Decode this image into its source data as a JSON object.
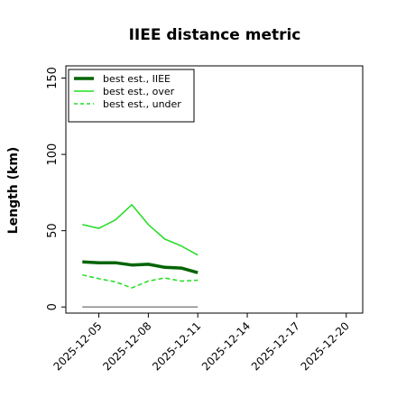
{
  "chart_data": {
    "type": "line",
    "title": "IIEE distance metric",
    "xlabel": "",
    "ylabel": "Length (km)",
    "xlim": [
      "2025-12-03",
      "2025-12-21"
    ],
    "ylim": [
      -4,
      158
    ],
    "x_ticks": [
      "2025-12-05",
      "2025-12-08",
      "2025-12-11",
      "2025-12-14",
      "2025-12-17",
      "2025-12-20"
    ],
    "y_ticks": [
      0,
      50,
      100,
      150
    ],
    "grid": false,
    "legend_position": "upper-left",
    "x": [
      "2025-12-04",
      "2025-12-05",
      "2025-12-06",
      "2025-12-07",
      "2025-12-08",
      "2025-12-09",
      "2025-12-10",
      "2025-12-11"
    ],
    "series": [
      {
        "name": "best est., IIEE",
        "color": "#006400",
        "style": "solid",
        "width": "thick",
        "values": [
          29.5,
          29,
          29,
          27.5,
          28,
          26,
          25.5,
          22.5
        ]
      },
      {
        "name": "best est., over",
        "color": "#22dd22",
        "style": "solid",
        "width": "thin",
        "values": [
          54,
          51.5,
          57,
          67,
          54,
          44.5,
          40,
          34
        ]
      },
      {
        "name": "best est., under",
        "color": "#22dd22",
        "style": "dashed",
        "width": "thin",
        "values": [
          21,
          18.5,
          16.5,
          12.5,
          17,
          19,
          17,
          17.5
        ]
      },
      {
        "name": "",
        "color": "#888888",
        "style": "solid",
        "width": "thin",
        "values": [
          0,
          0,
          0,
          0,
          0,
          0,
          0,
          0
        ]
      }
    ]
  }
}
